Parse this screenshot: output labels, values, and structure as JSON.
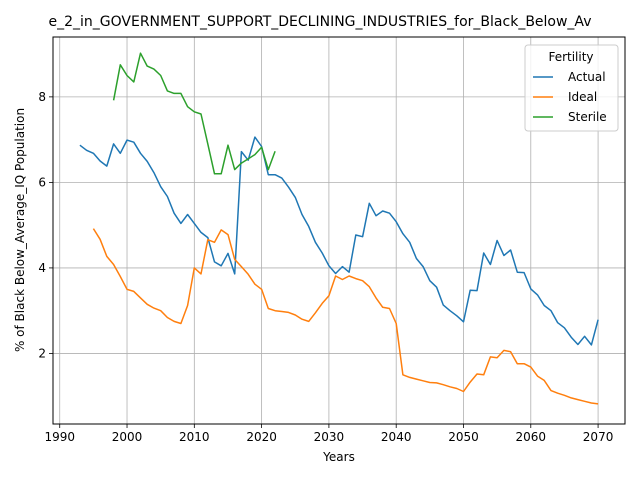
{
  "chart_data": {
    "type": "line",
    "title": "e_2_in_GOVERNMENT_SUPPORT_DECLINING_INDUSTRIES_for_Black_Below_Av",
    "xlabel": "Years",
    "ylabel": "% of Black Below_Average_IQ Population",
    "xlim": [
      1989,
      2074
    ],
    "ylim": [
      0.35,
      9.4
    ],
    "xticks": [
      "1990",
      "2000",
      "2010",
      "2020",
      "2030",
      "2040",
      "2050",
      "2060",
      "2070"
    ],
    "xtick_values": [
      1990,
      2000,
      2010,
      2020,
      2030,
      2040,
      2050,
      2060,
      2070
    ],
    "yticks": [
      "2",
      "4",
      "6",
      "8"
    ],
    "ytick_values": [
      2,
      4,
      6,
      8
    ],
    "grid": true,
    "legend": {
      "title": "Fertility",
      "placement": "top-right"
    },
    "series": [
      {
        "name": "Actual",
        "color": "#1f77b4",
        "x": [
          1993,
          1994,
          1995,
          1996,
          1997,
          1998,
          1999,
          2000,
          2001,
          2002,
          2003,
          2004,
          2005,
          2006,
          2007,
          2008,
          2009,
          2010,
          2011,
          2012,
          2013,
          2014,
          2015,
          2016,
          2017,
          2018,
          2019,
          2020,
          2021,
          2022,
          2023,
          2024,
          2025,
          2026,
          2027,
          2028,
          2029,
          2030,
          2031,
          2032,
          2033,
          2034,
          2035,
          2036,
          2037,
          2038,
          2039,
          2040,
          2041,
          2042,
          2043,
          2044,
          2045,
          2046,
          2047,
          2048,
          2049,
          2050,
          2051,
          2052,
          2053,
          2054,
          2055,
          2056,
          2057,
          2058,
          2059,
          2060,
          2061,
          2062,
          2063,
          2064,
          2065,
          2066,
          2067,
          2068,
          2069,
          2070
        ],
        "values": [
          6.87,
          6.75,
          6.68,
          6.5,
          6.38,
          6.9,
          6.68,
          6.99,
          6.94,
          6.68,
          6.49,
          6.23,
          5.9,
          5.67,
          5.28,
          5.04,
          5.25,
          5.04,
          4.83,
          4.71,
          4.14,
          4.05,
          4.34,
          3.86,
          6.72,
          6.52,
          7.06,
          6.84,
          6.18,
          6.18,
          6.1,
          5.89,
          5.65,
          5.25,
          4.97,
          4.6,
          4.35,
          4.05,
          3.87,
          4.03,
          3.9,
          4.77,
          4.73,
          5.51,
          5.22,
          5.33,
          5.28,
          5.08,
          4.8,
          4.6,
          4.22,
          4.03,
          3.7,
          3.55,
          3.13,
          3.0,
          2.88,
          2.74,
          3.48,
          3.47,
          4.35,
          4.08,
          4.64,
          4.29,
          4.42,
          3.9,
          3.89,
          3.51,
          3.37,
          3.12,
          3.0,
          2.72,
          2.6,
          2.38,
          2.21,
          2.4,
          2.2,
          2.79
        ]
      },
      {
        "name": "Ideal",
        "color": "#ff7f0e",
        "x": [
          1995,
          1996,
          1997,
          1998,
          1999,
          2000,
          2001,
          2002,
          2003,
          2004,
          2005,
          2006,
          2007,
          2008,
          2009,
          2010,
          2011,
          2012,
          2013,
          2014,
          2015,
          2016,
          2017,
          2018,
          2019,
          2020,
          2021,
          2022,
          2023,
          2024,
          2025,
          2026,
          2027,
          2028,
          2029,
          2030,
          2031,
          2032,
          2033,
          2034,
          2035,
          2036,
          2037,
          2038,
          2039,
          2040,
          2041,
          2042,
          2043,
          2044,
          2045,
          2046,
          2047,
          2048,
          2049,
          2050,
          2051,
          2052,
          2053,
          2054,
          2055,
          2056,
          2057,
          2058,
          2059,
          2060,
          2061,
          2062,
          2063,
          2064,
          2065,
          2066,
          2067,
          2068,
          2069,
          2070
        ],
        "values": [
          4.92,
          4.67,
          4.27,
          4.08,
          3.8,
          3.5,
          3.45,
          3.3,
          3.15,
          3.06,
          3.0,
          2.84,
          2.75,
          2.7,
          3.12,
          4.0,
          3.86,
          4.66,
          4.6,
          4.89,
          4.78,
          4.2,
          4.03,
          3.85,
          3.62,
          3.5,
          3.05,
          3.0,
          2.98,
          2.96,
          2.9,
          2.8,
          2.75,
          2.95,
          3.17,
          3.35,
          3.81,
          3.73,
          3.81,
          3.75,
          3.7,
          3.56,
          3.3,
          3.08,
          3.05,
          2.7,
          1.5,
          1.44,
          1.4,
          1.36,
          1.32,
          1.31,
          1.27,
          1.22,
          1.18,
          1.11,
          1.33,
          1.52,
          1.5,
          1.92,
          1.9,
          2.07,
          2.04,
          1.76,
          1.76,
          1.68,
          1.47,
          1.37,
          1.13,
          1.07,
          1.02,
          0.96,
          0.92,
          0.88,
          0.84,
          0.82
        ]
      },
      {
        "name": "Sterile",
        "color": "#2ca02c",
        "x": [
          1998,
          1999,
          2000,
          2001,
          2002,
          2003,
          2004,
          2005,
          2006,
          2007,
          2008,
          2009,
          2010,
          2011,
          2012,
          2013,
          2014,
          2015,
          2016,
          2017,
          2018,
          2019,
          2020,
          2021,
          2022
        ],
        "values": [
          7.92,
          8.75,
          8.5,
          8.35,
          9.02,
          8.72,
          8.65,
          8.5,
          8.14,
          8.08,
          8.08,
          7.77,
          7.65,
          7.6,
          6.9,
          6.2,
          6.2,
          6.87,
          6.3,
          6.45,
          6.55,
          6.65,
          6.82,
          6.3,
          6.73
        ]
      }
    ]
  }
}
